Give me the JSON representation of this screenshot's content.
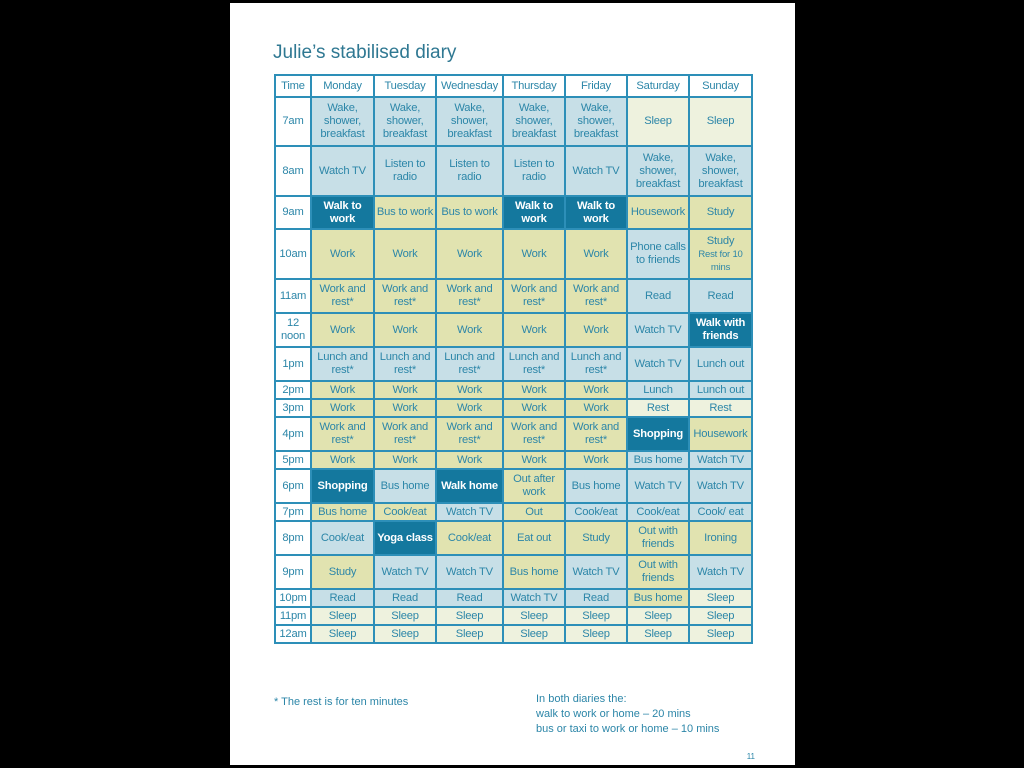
{
  "title": "Julie’s stabilised diary",
  "headers": [
    "Time",
    "Monday",
    "Tuesday",
    "Wednesday",
    "Thursday",
    "Friday",
    "Saturday",
    "Sunday"
  ],
  "rows": [
    {
      "time": "7am",
      "h": 49,
      "cells": [
        [
          "Wake, shower, breakfast",
          "b"
        ],
        [
          "Wake, shower, breakfast",
          "b"
        ],
        [
          "Wake, shower, breakfast",
          "b"
        ],
        [
          "Wake, shower, breakfast",
          "b"
        ],
        [
          "Wake, shower, breakfast",
          "b"
        ],
        [
          "Sleep",
          "c"
        ],
        [
          "Sleep",
          "c"
        ]
      ]
    },
    {
      "time": "8am",
      "h": 50,
      "cells": [
        [
          "Watch TV",
          "b"
        ],
        [
          "Listen to radio",
          "b"
        ],
        [
          "Listen to radio",
          "b"
        ],
        [
          "Listen to radio",
          "b"
        ],
        [
          "Watch TV",
          "b"
        ],
        [
          "Wake, shower, breakfast",
          "b"
        ],
        [
          "Wake, shower, breakfast",
          "b"
        ]
      ]
    },
    {
      "time": "9am",
      "h": 33,
      "cells": [
        [
          "Walk to work",
          "d"
        ],
        [
          "Bus to work",
          "y"
        ],
        [
          "Bus to work",
          "y"
        ],
        [
          "Walk to work",
          "d"
        ],
        [
          "Walk to work",
          "d"
        ],
        [
          "Housework",
          "y"
        ],
        [
          "Study",
          "y"
        ]
      ]
    },
    {
      "time": "10am",
      "h": 50,
      "cells": [
        [
          "Work",
          "y"
        ],
        [
          "Work",
          "y"
        ],
        [
          "Work",
          "y"
        ],
        [
          "Work",
          "y"
        ],
        [
          "Work",
          "y"
        ],
        [
          "Phone calls to friends",
          "b"
        ],
        [
          "Study|Rest for 10 mins",
          "y"
        ]
      ]
    },
    {
      "time": "11am",
      "h": 34,
      "cells": [
        [
          "Work and rest*",
          "y"
        ],
        [
          "Work and rest*",
          "y"
        ],
        [
          "Work and rest*",
          "y"
        ],
        [
          "Work and rest*",
          "y"
        ],
        [
          "Work and rest*",
          "y"
        ],
        [
          "Read",
          "b"
        ],
        [
          "Read",
          "b"
        ]
      ]
    },
    {
      "time": "12 noon",
      "h": 34,
      "cells": [
        [
          "Work",
          "y"
        ],
        [
          "Work",
          "y"
        ],
        [
          "Work",
          "y"
        ],
        [
          "Work",
          "y"
        ],
        [
          "Work",
          "y"
        ],
        [
          "Watch TV",
          "b"
        ],
        [
          "Walk with friends",
          "d"
        ]
      ]
    },
    {
      "time": "1pm",
      "h": 34,
      "cells": [
        [
          "Lunch and rest*",
          "b"
        ],
        [
          "Lunch and rest*",
          "b"
        ],
        [
          "Lunch and rest*",
          "b"
        ],
        [
          "Lunch and rest*",
          "b"
        ],
        [
          "Lunch and rest*",
          "b"
        ],
        [
          "Watch TV",
          "b"
        ],
        [
          "Lunch out",
          "b"
        ]
      ]
    },
    {
      "time": "2pm",
      "h": 18,
      "cells": [
        [
          "Work",
          "y"
        ],
        [
          "Work",
          "y"
        ],
        [
          "Work",
          "y"
        ],
        [
          "Work",
          "y"
        ],
        [
          "Work",
          "y"
        ],
        [
          "Lunch",
          "b"
        ],
        [
          "Lunch out",
          "b"
        ]
      ]
    },
    {
      "time": "3pm",
      "h": 18,
      "cells": [
        [
          "Work",
          "y"
        ],
        [
          "Work",
          "y"
        ],
        [
          "Work",
          "y"
        ],
        [
          "Work",
          "y"
        ],
        [
          "Work",
          "y"
        ],
        [
          "Rest",
          "c"
        ],
        [
          "Rest",
          "c"
        ]
      ]
    },
    {
      "time": "4pm",
      "h": 34,
      "cells": [
        [
          "Work and rest*",
          "y"
        ],
        [
          "Work and rest*",
          "y"
        ],
        [
          "Work and rest*",
          "y"
        ],
        [
          "Work and rest*",
          "y"
        ],
        [
          "Work and rest*",
          "y"
        ],
        [
          "Shopping",
          "d"
        ],
        [
          "Housework",
          "y"
        ]
      ]
    },
    {
      "time": "5pm",
      "h": 18,
      "cells": [
        [
          "Work",
          "y"
        ],
        [
          "Work",
          "y"
        ],
        [
          "Work",
          "y"
        ],
        [
          "Work",
          "y"
        ],
        [
          "Work",
          "y"
        ],
        [
          "Bus home",
          "b"
        ],
        [
          "Watch TV",
          "b"
        ]
      ]
    },
    {
      "time": "6pm",
      "h": 34,
      "cells": [
        [
          "Shopping",
          "d"
        ],
        [
          "Bus home",
          "b"
        ],
        [
          "Walk home",
          "d"
        ],
        [
          "Out after work",
          "y"
        ],
        [
          "Bus home",
          "b"
        ],
        [
          "Watch TV",
          "b"
        ],
        [
          "Watch TV",
          "b"
        ]
      ]
    },
    {
      "time": "7pm",
      "h": 18,
      "cells": [
        [
          "Bus home",
          "y"
        ],
        [
          "Cook/eat",
          "y"
        ],
        [
          "Watch TV",
          "b"
        ],
        [
          "Out",
          "y"
        ],
        [
          "Cook/eat",
          "b"
        ],
        [
          "Cook/eat",
          "b"
        ],
        [
          "Cook/ eat",
          "b"
        ]
      ]
    },
    {
      "time": "8pm",
      "h": 34,
      "cells": [
        [
          "Cook/eat",
          "b"
        ],
        [
          "Yoga class",
          "d"
        ],
        [
          "Cook/eat",
          "y"
        ],
        [
          "Eat out",
          "y"
        ],
        [
          "Study",
          "y"
        ],
        [
          "Out with friends",
          "y"
        ],
        [
          "Ironing",
          "y"
        ]
      ]
    },
    {
      "time": "9pm",
      "h": 34,
      "cells": [
        [
          "Study",
          "y"
        ],
        [
          "Watch TV",
          "b"
        ],
        [
          "Watch TV",
          "b"
        ],
        [
          "Bus home",
          "y"
        ],
        [
          "Watch TV",
          "b"
        ],
        [
          "Out with friends",
          "y"
        ],
        [
          "Watch TV",
          "b"
        ]
      ]
    },
    {
      "time": "10pm",
      "h": 18,
      "cells": [
        [
          "Read",
          "b"
        ],
        [
          "Read",
          "b"
        ],
        [
          "Read",
          "b"
        ],
        [
          "Watch TV",
          "b"
        ],
        [
          "Read",
          "b"
        ],
        [
          "Bus home",
          "y"
        ],
        [
          "Sleep",
          "c"
        ]
      ]
    },
    {
      "time": "11pm",
      "h": 18,
      "cells": [
        [
          "Sleep",
          "c"
        ],
        [
          "Sleep",
          "c"
        ],
        [
          "Sleep",
          "c"
        ],
        [
          "Sleep",
          "c"
        ],
        [
          "Sleep",
          "c"
        ],
        [
          "Sleep",
          "c"
        ],
        [
          "Sleep",
          "c"
        ]
      ]
    },
    {
      "time": "12am",
      "h": 18,
      "cells": [
        [
          "Sleep",
          "c"
        ],
        [
          "Sleep",
          "c"
        ],
        [
          "Sleep",
          "c"
        ],
        [
          "Sleep",
          "c"
        ],
        [
          "Sleep",
          "c"
        ],
        [
          "Sleep",
          "c"
        ],
        [
          "Sleep",
          "c"
        ]
      ]
    }
  ],
  "footnote": "* The rest is for ten minutes",
  "notes": [
    "In both diaries the:",
    "walk to work or home – 20 mins",
    "bus or taxi to work or home – 10 mins"
  ],
  "page_number": "11",
  "colors": {
    "yellow": "#e1e3b0",
    "blue": "#c7dfe7",
    "cream": "#eef2de",
    "dark": "#14789e",
    "text": "#2c86a8"
  }
}
